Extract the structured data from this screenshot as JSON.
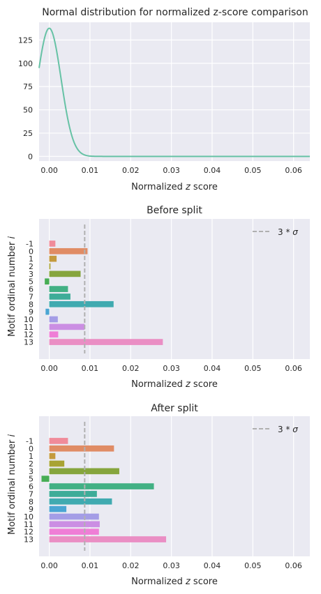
{
  "figure": {
    "background": "#ffffff",
    "axes_face": "#eaeaf2",
    "grid_color": "#ffffff"
  },
  "chart_data": [
    {
      "type": "line",
      "title": "Normal distribution for normalized z-score comparison",
      "xlabel": "Normalized $z$ score",
      "xlabel_parts": [
        "Normalized ",
        "z",
        " score"
      ],
      "ylabel": "",
      "xlim": [
        -0.0025,
        0.064
      ],
      "ylim": [
        -5,
        144
      ],
      "xticks": [
        "0.00",
        "0.01",
        "0.02",
        "0.03",
        "0.04",
        "0.05",
        "0.06"
      ],
      "xtick_values": [
        0,
        0.01,
        0.02,
        0.03,
        0.04,
        0.05,
        0.06
      ],
      "yticks": [
        "0",
        "25",
        "50",
        "75",
        "100",
        "125"
      ],
      "ytick_values": [
        0,
        25,
        50,
        75,
        100,
        125
      ],
      "grid": true,
      "color": "#66c2a5",
      "curve": {
        "mean": 0.0,
        "sigma": 0.0029,
        "peak": 137.6
      }
    },
    {
      "type": "bar",
      "orientation": "horizontal",
      "title": "Before split",
      "xlabel": "Normalized $z$ score",
      "xlabel_parts": [
        "Normalized ",
        "z",
        " score"
      ],
      "ylabel": "Motif ordinal number $i$",
      "ylabel_parts": [
        "Motif ordinal number ",
        "i"
      ],
      "xlim": [
        -0.0025,
        0.064
      ],
      "xticks": [
        "0.00",
        "0.01",
        "0.02",
        "0.03",
        "0.04",
        "0.05",
        "0.06"
      ],
      "xtick_values": [
        0,
        0.01,
        0.02,
        0.03,
        0.04,
        0.05,
        0.06
      ],
      "grid": true,
      "legend_position": "upper right",
      "legend_label": "3 * σ",
      "legend_label_parts": [
        "3 * ",
        "σ"
      ],
      "threshold": 0.0087,
      "threshold_color": "#b0b0b0",
      "categories": [
        "-1",
        "0",
        "1",
        "2",
        "3",
        "5",
        "6",
        "7",
        "8",
        "9",
        "10",
        "11",
        "12",
        "13"
      ],
      "values": [
        0.0015,
        0.0094,
        0.0018,
        0.0003,
        0.0077,
        -0.0011,
        0.0046,
        0.0052,
        0.0158,
        -0.0009,
        0.0021,
        0.0087,
        0.0022,
        0.0279
      ],
      "colors": [
        "#f08b9a",
        "#e08c65",
        "#c49a3e",
        "#a8a333",
        "#86a53d",
        "#47ad55",
        "#42b084",
        "#3eac98",
        "#40aab0",
        "#4aa5d3",
        "#a49de6",
        "#cb8ee3",
        "#ef7ed6",
        "#ea8ec4"
      ]
    },
    {
      "type": "bar",
      "orientation": "horizontal",
      "title": "After split",
      "xlabel": "Normalized $z$ score",
      "xlabel_parts": [
        "Normalized ",
        "z",
        " score"
      ],
      "ylabel": "Motif ordinal number $i$",
      "ylabel_parts": [
        "Motif ordinal number ",
        "i"
      ],
      "xlim": [
        -0.0025,
        0.064
      ],
      "xticks": [
        "0.00",
        "0.01",
        "0.02",
        "0.03",
        "0.04",
        "0.05",
        "0.06"
      ],
      "xtick_values": [
        0,
        0.01,
        0.02,
        0.03,
        0.04,
        0.05,
        0.06
      ],
      "grid": true,
      "legend_position": "upper right",
      "legend_label": "3 * σ",
      "legend_label_parts": [
        "3 * ",
        "σ"
      ],
      "threshold": 0.0087,
      "threshold_color": "#b0b0b0",
      "categories": [
        "-1",
        "0",
        "1",
        "2",
        "3",
        "5",
        "6",
        "7",
        "8",
        "9",
        "10",
        "11",
        "12",
        "13"
      ],
      "values": [
        0.0046,
        0.0159,
        0.0015,
        0.0037,
        0.0172,
        -0.0019,
        0.0257,
        0.0117,
        0.0154,
        0.0042,
        0.0122,
        0.0124,
        0.0122,
        0.0287
      ],
      "colors": [
        "#f08b9a",
        "#e08c65",
        "#c49a3e",
        "#a8a333",
        "#86a53d",
        "#47ad55",
        "#42b084",
        "#3eac98",
        "#40aab0",
        "#4aa5d3",
        "#a49de6",
        "#cb8ee3",
        "#ef7ed6",
        "#ea8ec4"
      ]
    }
  ]
}
